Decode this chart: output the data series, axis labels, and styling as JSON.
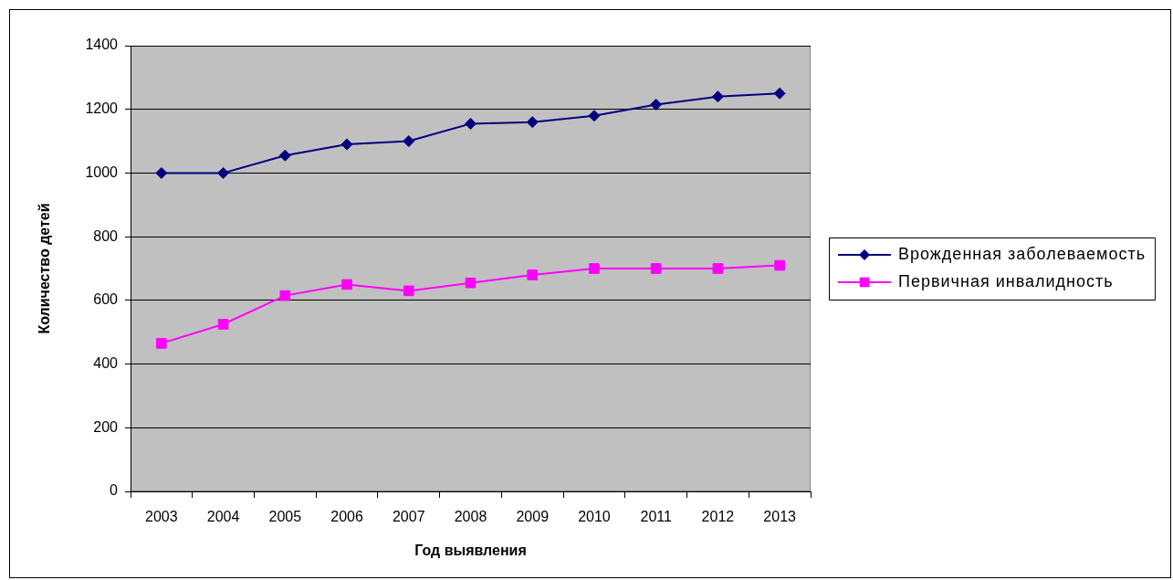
{
  "chart_data": {
    "type": "line",
    "xlabel": "Год выявления",
    "ylabel": "Количество детей",
    "categories": [
      "2003",
      "2004",
      "2005",
      "2006",
      "2007",
      "2008",
      "2009",
      "2010",
      "2011",
      "2012",
      "2013"
    ],
    "series": [
      {
        "name": "Врожденная заболеваемость",
        "color": "#000080",
        "marker": "diamond",
        "values": [
          1000,
          1000,
          1055,
          1090,
          1100,
          1155,
          1160,
          1180,
          1215,
          1240,
          1250
        ]
      },
      {
        "name": "Первичная инвалидность",
        "color": "#ff00ff",
        "marker": "square",
        "values": [
          465,
          525,
          615,
          650,
          630,
          655,
          680,
          700,
          700,
          700,
          710
        ]
      }
    ],
    "ylim": [
      0,
      1400
    ],
    "yticks": [
      0,
      200,
      400,
      600,
      800,
      1000,
      1200,
      1400
    ],
    "grid": "y",
    "legend": "right",
    "line_style": "solid"
  }
}
